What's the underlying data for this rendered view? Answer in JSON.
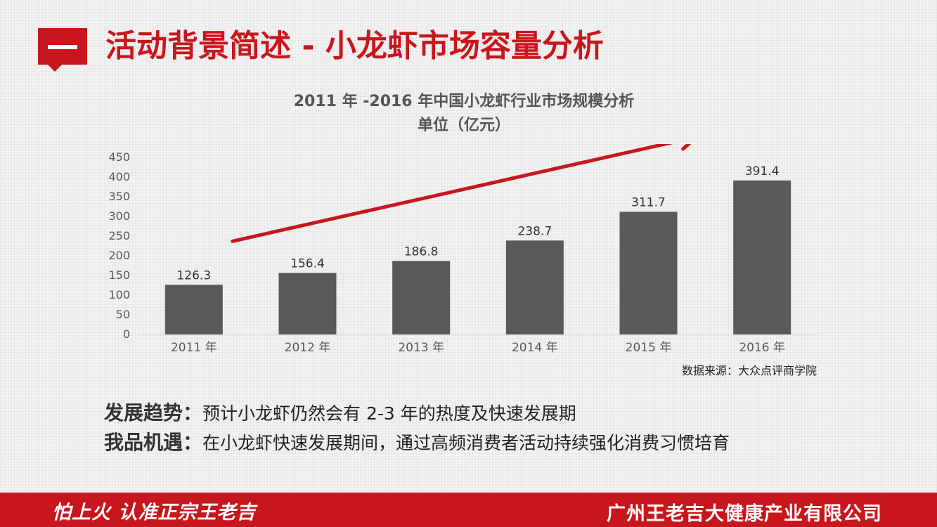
{
  "header": {
    "title": "活动背景简述 - 小龙虾市场容量分析"
  },
  "chart_data": {
    "type": "bar",
    "title": "2011 年 -2016 年中国小龙虾行业市场规模分析",
    "subtitle": "单位（亿元）",
    "categories": [
      "2011 年",
      "2012 年",
      "2013 年",
      "2014 年",
      "2015 年",
      "2016 年"
    ],
    "values": [
      126.3,
      156.4,
      186.8,
      238.7,
      311.7,
      391.4
    ],
    "value_labels": [
      "126.3",
      "156.4",
      "186.8",
      "238.7",
      "311.7",
      "391.4"
    ],
    "yticks": [
      "0",
      "50",
      "100",
      "150",
      "200",
      "250",
      "300",
      "350",
      "400",
      "450"
    ],
    "ylim": [
      0,
      450
    ],
    "bar_color": "#595959",
    "trend_arrow_color": "#c8161d",
    "grid": false,
    "legend": "none",
    "source": "数据来源：大众点评商学院"
  },
  "info": {
    "trend_label": "发展趋势：",
    "trend_text": "预计小龙虾仍然会有 2-3 年的热度及快速发展期",
    "opportunity_label": "我品机遇：",
    "opportunity_text": "在小龙虾快速发展期间，通过高频消费者活动持续强化消费习惯培育"
  },
  "footer": {
    "slogan": "怕上火 认准正宗王老吉",
    "company": "广州王老吉大健康产业有限公司"
  },
  "colors": {
    "brand_red": "#c8161d",
    "bar_gray": "#595959",
    "text_dark": "#222222"
  }
}
